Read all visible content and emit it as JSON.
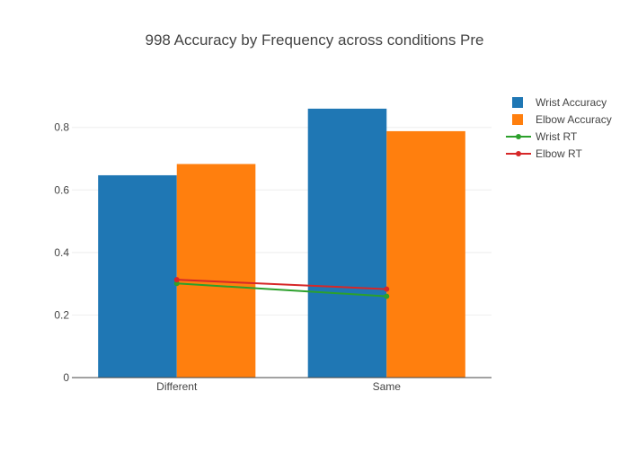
{
  "chart_data": {
    "type": "bar",
    "title": "998 Accuracy by Frequency across conditions Pre",
    "xlabel": "",
    "ylabel": "",
    "categories": [
      "Different",
      "Same"
    ],
    "ylim": [
      0,
      0.92
    ],
    "yticks": [
      0,
      0.2,
      0.4,
      0.6,
      0.8
    ],
    "ytick_labels": [
      "0",
      "0.2",
      "0.4",
      "0.6",
      "0.8"
    ],
    "grid": true,
    "legend_position": "top-right",
    "series": [
      {
        "name": "Wrist Accuracy",
        "type": "bar",
        "color": "#1f77b4",
        "values": [
          0.647,
          0.86
        ]
      },
      {
        "name": "Elbow Accuracy",
        "type": "bar",
        "color": "#ff7f0e",
        "values": [
          0.683,
          0.788
        ]
      },
      {
        "name": "Wrist RT",
        "type": "line",
        "color": "#2ca02c",
        "values": [
          0.301,
          0.26
        ]
      },
      {
        "name": "Elbow RT",
        "type": "line",
        "color": "#d62728",
        "values": [
          0.313,
          0.283
        ]
      }
    ]
  }
}
